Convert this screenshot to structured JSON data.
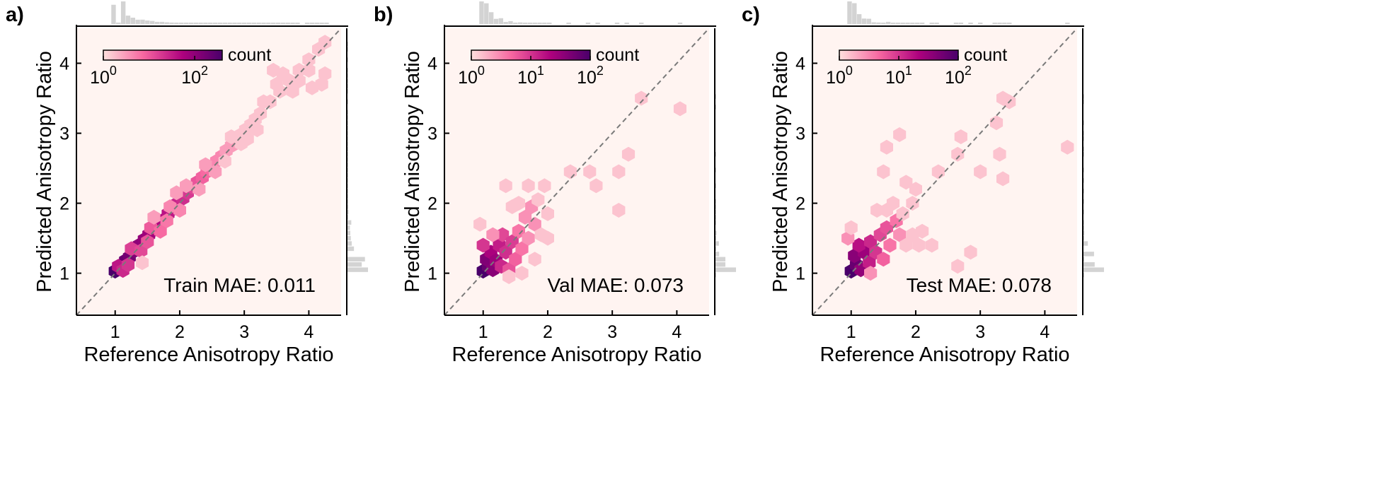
{
  "figure": {
    "panels": [
      {
        "panel_label": "a)",
        "xlabel": "Reference Anisotropy Ratio",
        "ylabel": "Predicted Anisotropy Ratio",
        "annotation": "Train MAE: 0.011",
        "colorbar": {
          "label": "count",
          "tick_labels": [
            "10^0",
            "10^2"
          ],
          "tick_values": [
            1,
            100
          ],
          "max_count": 400
        }
      },
      {
        "panel_label": "b)",
        "xlabel": "Reference Anisotropy Ratio",
        "ylabel": "Predicted Anisotropy Ratio",
        "annotation": "Val MAE: 0.073",
        "colorbar": {
          "label": "count",
          "tick_labels": [
            "10^0",
            "10^1",
            "10^2"
          ],
          "tick_values": [
            1,
            10,
            100
          ],
          "max_count": 100
        }
      },
      {
        "panel_label": "c)",
        "xlabel": "Reference Anisotropy Ratio",
        "ylabel": "Predicted Anisotropy Ratio",
        "annotation": "Test MAE: 0.078",
        "colorbar": {
          "label": "count",
          "tick_labels": [
            "10^0",
            "10^1",
            "10^2"
          ],
          "tick_values": [
            1,
            10,
            100
          ],
          "max_count": 100
        }
      }
    ]
  },
  "chart_data": [
    {
      "type": "heatmap",
      "subtype": "hexbin",
      "title": "",
      "xlabel": "Reference Anisotropy Ratio",
      "ylabel": "Predicted Anisotropy Ratio",
      "xlim": [
        0.4,
        4.5
      ],
      "ylim": [
        0.4,
        4.5
      ],
      "xticks": [
        1,
        2,
        3,
        4
      ],
      "yticks": [
        1,
        2,
        3,
        4
      ],
      "reference_line": "y = x (dashed grey)",
      "color_scale": "log",
      "colormap": [
        "#fde0dd",
        "#f768a1",
        "#ae017e",
        "#49006a"
      ],
      "background_color": "#fff4f1",
      "grid": false,
      "legend": "top-left (colorbar)",
      "marginal_histograms": true,
      "bins": [
        {
          "x": 1.0,
          "y": 1.03,
          "count": 400
        },
        {
          "x": 1.09,
          "y": 1.1,
          "count": 250
        },
        {
          "x": 1.16,
          "y": 1.18,
          "count": 200
        },
        {
          "x": 1.22,
          "y": 1.23,
          "count": 160
        },
        {
          "x": 1.3,
          "y": 1.32,
          "count": 120
        },
        {
          "x": 1.37,
          "y": 1.4,
          "count": 90
        },
        {
          "x": 1.45,
          "y": 1.48,
          "count": 80
        },
        {
          "x": 1.52,
          "y": 1.55,
          "count": 65
        },
        {
          "x": 1.6,
          "y": 1.62,
          "count": 55
        },
        {
          "x": 1.67,
          "y": 1.7,
          "count": 45
        },
        {
          "x": 1.75,
          "y": 1.76,
          "count": 40
        },
        {
          "x": 1.82,
          "y": 1.85,
          "count": 32
        },
        {
          "x": 1.9,
          "y": 1.92,
          "count": 28
        },
        {
          "x": 1.97,
          "y": 2.0,
          "count": 22
        },
        {
          "x": 2.05,
          "y": 2.07,
          "count": 18
        },
        {
          "x": 2.12,
          "y": 2.15,
          "count": 14
        },
        {
          "x": 2.2,
          "y": 2.23,
          "count": 11
        },
        {
          "x": 2.27,
          "y": 2.3,
          "count": 8
        },
        {
          "x": 2.35,
          "y": 2.37,
          "count": 6
        },
        {
          "x": 2.42,
          "y": 2.45,
          "count": 5
        },
        {
          "x": 2.5,
          "y": 2.52,
          "count": 4
        },
        {
          "x": 2.57,
          "y": 2.6,
          "count": 3
        },
        {
          "x": 2.65,
          "y": 2.67,
          "count": 3
        },
        {
          "x": 2.72,
          "y": 2.75,
          "count": 2
        },
        {
          "x": 2.8,
          "y": 2.82,
          "count": 2
        },
        {
          "x": 2.87,
          "y": 2.9,
          "count": 2
        },
        {
          "x": 2.95,
          "y": 2.98,
          "count": 1
        },
        {
          "x": 3.02,
          "y": 3.05,
          "count": 1
        },
        {
          "x": 3.1,
          "y": 3.12,
          "count": 1
        },
        {
          "x": 3.17,
          "y": 3.2,
          "count": 1
        },
        {
          "x": 3.25,
          "y": 3.28,
          "count": 1
        },
        {
          "x": 3.4,
          "y": 3.45,
          "count": 1
        },
        {
          "x": 3.55,
          "y": 3.6,
          "count": 1
        },
        {
          "x": 3.7,
          "y": 3.75,
          "count": 1
        },
        {
          "x": 3.85,
          "y": 3.9,
          "count": 1
        },
        {
          "x": 4.0,
          "y": 4.05,
          "count": 1
        },
        {
          "x": 4.15,
          "y": 4.2,
          "count": 1
        },
        {
          "x": 4.25,
          "y": 4.3,
          "count": 1
        },
        {
          "x": 1.05,
          "y": 1.1,
          "count": 30
        },
        {
          "x": 1.12,
          "y": 1.04,
          "count": 20
        },
        {
          "x": 1.2,
          "y": 1.12,
          "count": 15
        },
        {
          "x": 1.25,
          "y": 1.35,
          "count": 12
        },
        {
          "x": 1.4,
          "y": 1.32,
          "count": 10
        },
        {
          "x": 1.5,
          "y": 1.45,
          "count": 8
        },
        {
          "x": 1.55,
          "y": 1.65,
          "count": 7
        },
        {
          "x": 1.7,
          "y": 1.6,
          "count": 5
        },
        {
          "x": 1.8,
          "y": 1.75,
          "count": 4
        },
        {
          "x": 1.85,
          "y": 1.95,
          "count": 3
        },
        {
          "x": 2.0,
          "y": 1.9,
          "count": 3
        },
        {
          "x": 2.1,
          "y": 2.25,
          "count": 2
        },
        {
          "x": 2.3,
          "y": 2.2,
          "count": 2
        },
        {
          "x": 2.4,
          "y": 2.55,
          "count": 2
        },
        {
          "x": 2.55,
          "y": 2.45,
          "count": 2
        },
        {
          "x": 2.7,
          "y": 2.6,
          "count": 1
        },
        {
          "x": 2.8,
          "y": 2.95,
          "count": 1
        },
        {
          "x": 2.95,
          "y": 2.85,
          "count": 1
        },
        {
          "x": 3.05,
          "y": 2.92,
          "count": 1
        },
        {
          "x": 3.2,
          "y": 3.05,
          "count": 1
        },
        {
          "x": 3.3,
          "y": 3.45,
          "count": 1
        },
        {
          "x": 3.5,
          "y": 3.7,
          "count": 1
        },
        {
          "x": 3.6,
          "y": 3.85,
          "count": 1
        },
        {
          "x": 3.75,
          "y": 3.6,
          "count": 1
        },
        {
          "x": 3.85,
          "y": 3.75,
          "count": 1
        },
        {
          "x": 4.0,
          "y": 3.9,
          "count": 1
        },
        {
          "x": 4.2,
          "y": 3.7,
          "count": 1
        },
        {
          "x": 4.25,
          "y": 3.85,
          "count": 1
        },
        {
          "x": 4.05,
          "y": 3.65,
          "count": 1
        },
        {
          "x": 3.45,
          "y": 3.9,
          "count": 1
        },
        {
          "x": 1.42,
          "y": 1.15,
          "count": 1
        },
        {
          "x": 1.6,
          "y": 1.8,
          "count": 2
        },
        {
          "x": 1.95,
          "y": 2.15,
          "count": 2
        }
      ]
    },
    {
      "type": "heatmap",
      "subtype": "hexbin",
      "title": "",
      "xlabel": "Reference Anisotropy Ratio",
      "ylabel": "Predicted Anisotropy Ratio",
      "xlim": [
        0.4,
        4.5
      ],
      "ylim": [
        0.4,
        4.5
      ],
      "xticks": [
        1,
        2,
        3,
        4
      ],
      "yticks": [
        1,
        2,
        3,
        4
      ],
      "reference_line": "y = x (dashed grey)",
      "color_scale": "log",
      "colormap": [
        "#fde0dd",
        "#f768a1",
        "#ae017e",
        "#49006a"
      ],
      "background_color": "#fff4f1",
      "grid": false,
      "legend": "top-left (colorbar)",
      "marginal_histograms": true,
      "bins": [
        {
          "x": 1.0,
          "y": 1.03,
          "count": 100
        },
        {
          "x": 1.08,
          "y": 1.1,
          "count": 60
        },
        {
          "x": 1.05,
          "y": 1.2,
          "count": 40
        },
        {
          "x": 1.15,
          "y": 1.05,
          "count": 35
        },
        {
          "x": 1.12,
          "y": 1.3,
          "count": 20
        },
        {
          "x": 1.2,
          "y": 1.18,
          "count": 25
        },
        {
          "x": 1.0,
          "y": 1.4,
          "count": 8
        },
        {
          "x": 1.28,
          "y": 1.1,
          "count": 10
        },
        {
          "x": 1.25,
          "y": 1.4,
          "count": 12
        },
        {
          "x": 1.35,
          "y": 1.3,
          "count": 9
        },
        {
          "x": 1.4,
          "y": 1.05,
          "count": 5
        },
        {
          "x": 1.3,
          "y": 1.55,
          "count": 6
        },
        {
          "x": 1.45,
          "y": 1.45,
          "count": 7
        },
        {
          "x": 1.5,
          "y": 1.2,
          "count": 4
        },
        {
          "x": 1.55,
          "y": 1.6,
          "count": 3
        },
        {
          "x": 1.6,
          "y": 1.35,
          "count": 3
        },
        {
          "x": 1.65,
          "y": 1.8,
          "count": 2
        },
        {
          "x": 1.7,
          "y": 1.5,
          "count": 2
        },
        {
          "x": 1.75,
          "y": 1.95,
          "count": 2
        },
        {
          "x": 1.8,
          "y": 1.7,
          "count": 2
        },
        {
          "x": 1.85,
          "y": 2.05,
          "count": 1
        },
        {
          "x": 1.9,
          "y": 1.55,
          "count": 1
        },
        {
          "x": 0.95,
          "y": 1.7,
          "count": 1
        },
        {
          "x": 1.15,
          "y": 1.55,
          "count": 2
        },
        {
          "x": 1.45,
          "y": 1.95,
          "count": 1
        },
        {
          "x": 1.55,
          "y": 2.0,
          "count": 1
        },
        {
          "x": 1.7,
          "y": 2.25,
          "count": 1
        },
        {
          "x": 1.95,
          "y": 2.25,
          "count": 1
        },
        {
          "x": 1.35,
          "y": 2.25,
          "count": 1
        },
        {
          "x": 2.0,
          "y": 1.85,
          "count": 1
        },
        {
          "x": 1.6,
          "y": 1.0,
          "count": 1
        },
        {
          "x": 1.8,
          "y": 1.2,
          "count": 1
        },
        {
          "x": 2.0,
          "y": 1.5,
          "count": 1
        },
        {
          "x": 1.4,
          "y": 0.95,
          "count": 1
        },
        {
          "x": 2.35,
          "y": 2.45,
          "count": 1
        },
        {
          "x": 2.65,
          "y": 2.45,
          "count": 1
        },
        {
          "x": 2.75,
          "y": 2.25,
          "count": 1
        },
        {
          "x": 3.1,
          "y": 2.45,
          "count": 1
        },
        {
          "x": 3.25,
          "y": 2.7,
          "count": 1
        },
        {
          "x": 3.1,
          "y": 1.9,
          "count": 1
        },
        {
          "x": 3.45,
          "y": 3.5,
          "count": 1
        },
        {
          "x": 4.05,
          "y": 3.35,
          "count": 1
        }
      ]
    },
    {
      "type": "heatmap",
      "subtype": "hexbin",
      "title": "",
      "xlabel": "Reference Anisotropy Ratio",
      "ylabel": "Predicted Anisotropy Ratio",
      "xlim": [
        0.4,
        4.5
      ],
      "ylim": [
        0.4,
        4.5
      ],
      "xticks": [
        1,
        2,
        3,
        4
      ],
      "yticks": [
        1,
        2,
        3,
        4
      ],
      "reference_line": "y = x (dashed grey)",
      "color_scale": "log",
      "colormap": [
        "#fde0dd",
        "#f768a1",
        "#ae017e",
        "#49006a"
      ],
      "background_color": "#fff4f1",
      "grid": false,
      "legend": "top-left (colorbar)",
      "marginal_histograms": true,
      "bins": [
        {
          "x": 1.0,
          "y": 1.03,
          "count": 100
        },
        {
          "x": 1.08,
          "y": 1.12,
          "count": 60
        },
        {
          "x": 1.05,
          "y": 1.25,
          "count": 35
        },
        {
          "x": 1.15,
          "y": 1.05,
          "count": 30
        },
        {
          "x": 1.2,
          "y": 1.3,
          "count": 25
        },
        {
          "x": 1.12,
          "y": 1.4,
          "count": 15
        },
        {
          "x": 1.28,
          "y": 1.15,
          "count": 12
        },
        {
          "x": 1.3,
          "y": 1.45,
          "count": 10
        },
        {
          "x": 1.38,
          "y": 1.3,
          "count": 8
        },
        {
          "x": 1.45,
          "y": 1.55,
          "count": 6
        },
        {
          "x": 1.5,
          "y": 1.2,
          "count": 4
        },
        {
          "x": 1.55,
          "y": 1.65,
          "count": 5
        },
        {
          "x": 1.6,
          "y": 1.4,
          "count": 3
        },
        {
          "x": 1.7,
          "y": 1.75,
          "count": 3
        },
        {
          "x": 1.75,
          "y": 1.55,
          "count": 2
        },
        {
          "x": 0.95,
          "y": 1.5,
          "count": 2
        },
        {
          "x": 1.0,
          "y": 1.65,
          "count": 1
        },
        {
          "x": 1.4,
          "y": 1.9,
          "count": 1
        },
        {
          "x": 1.55,
          "y": 1.9,
          "count": 1
        },
        {
          "x": 1.65,
          "y": 2.0,
          "count": 1
        },
        {
          "x": 1.8,
          "y": 1.85,
          "count": 1
        },
        {
          "x": 1.95,
          "y": 2.0,
          "count": 1
        },
        {
          "x": 1.85,
          "y": 1.4,
          "count": 1
        },
        {
          "x": 1.95,
          "y": 1.55,
          "count": 1
        },
        {
          "x": 2.05,
          "y": 1.4,
          "count": 1
        },
        {
          "x": 2.1,
          "y": 1.6,
          "count": 1
        },
        {
          "x": 2.25,
          "y": 1.4,
          "count": 1
        },
        {
          "x": 1.5,
          "y": 2.45,
          "count": 1
        },
        {
          "x": 1.55,
          "y": 2.8,
          "count": 1
        },
        {
          "x": 1.75,
          "y": 2.98,
          "count": 1
        },
        {
          "x": 1.85,
          "y": 2.3,
          "count": 1
        },
        {
          "x": 2.0,
          "y": 2.2,
          "count": 1
        },
        {
          "x": 2.35,
          "y": 2.45,
          "count": 1
        },
        {
          "x": 2.65,
          "y": 2.7,
          "count": 1
        },
        {
          "x": 2.7,
          "y": 2.95,
          "count": 1
        },
        {
          "x": 2.65,
          "y": 1.1,
          "count": 1
        },
        {
          "x": 2.85,
          "y": 1.3,
          "count": 1
        },
        {
          "x": 3.0,
          "y": 2.45,
          "count": 1
        },
        {
          "x": 3.3,
          "y": 2.7,
          "count": 1
        },
        {
          "x": 3.35,
          "y": 2.35,
          "count": 1
        },
        {
          "x": 3.35,
          "y": 3.5,
          "count": 1
        },
        {
          "x": 3.45,
          "y": 3.45,
          "count": 1
        },
        {
          "x": 3.25,
          "y": 3.15,
          "count": 1
        },
        {
          "x": 4.35,
          "y": 2.8,
          "count": 1
        },
        {
          "x": 1.3,
          "y": 1.0,
          "count": 2
        }
      ]
    }
  ]
}
